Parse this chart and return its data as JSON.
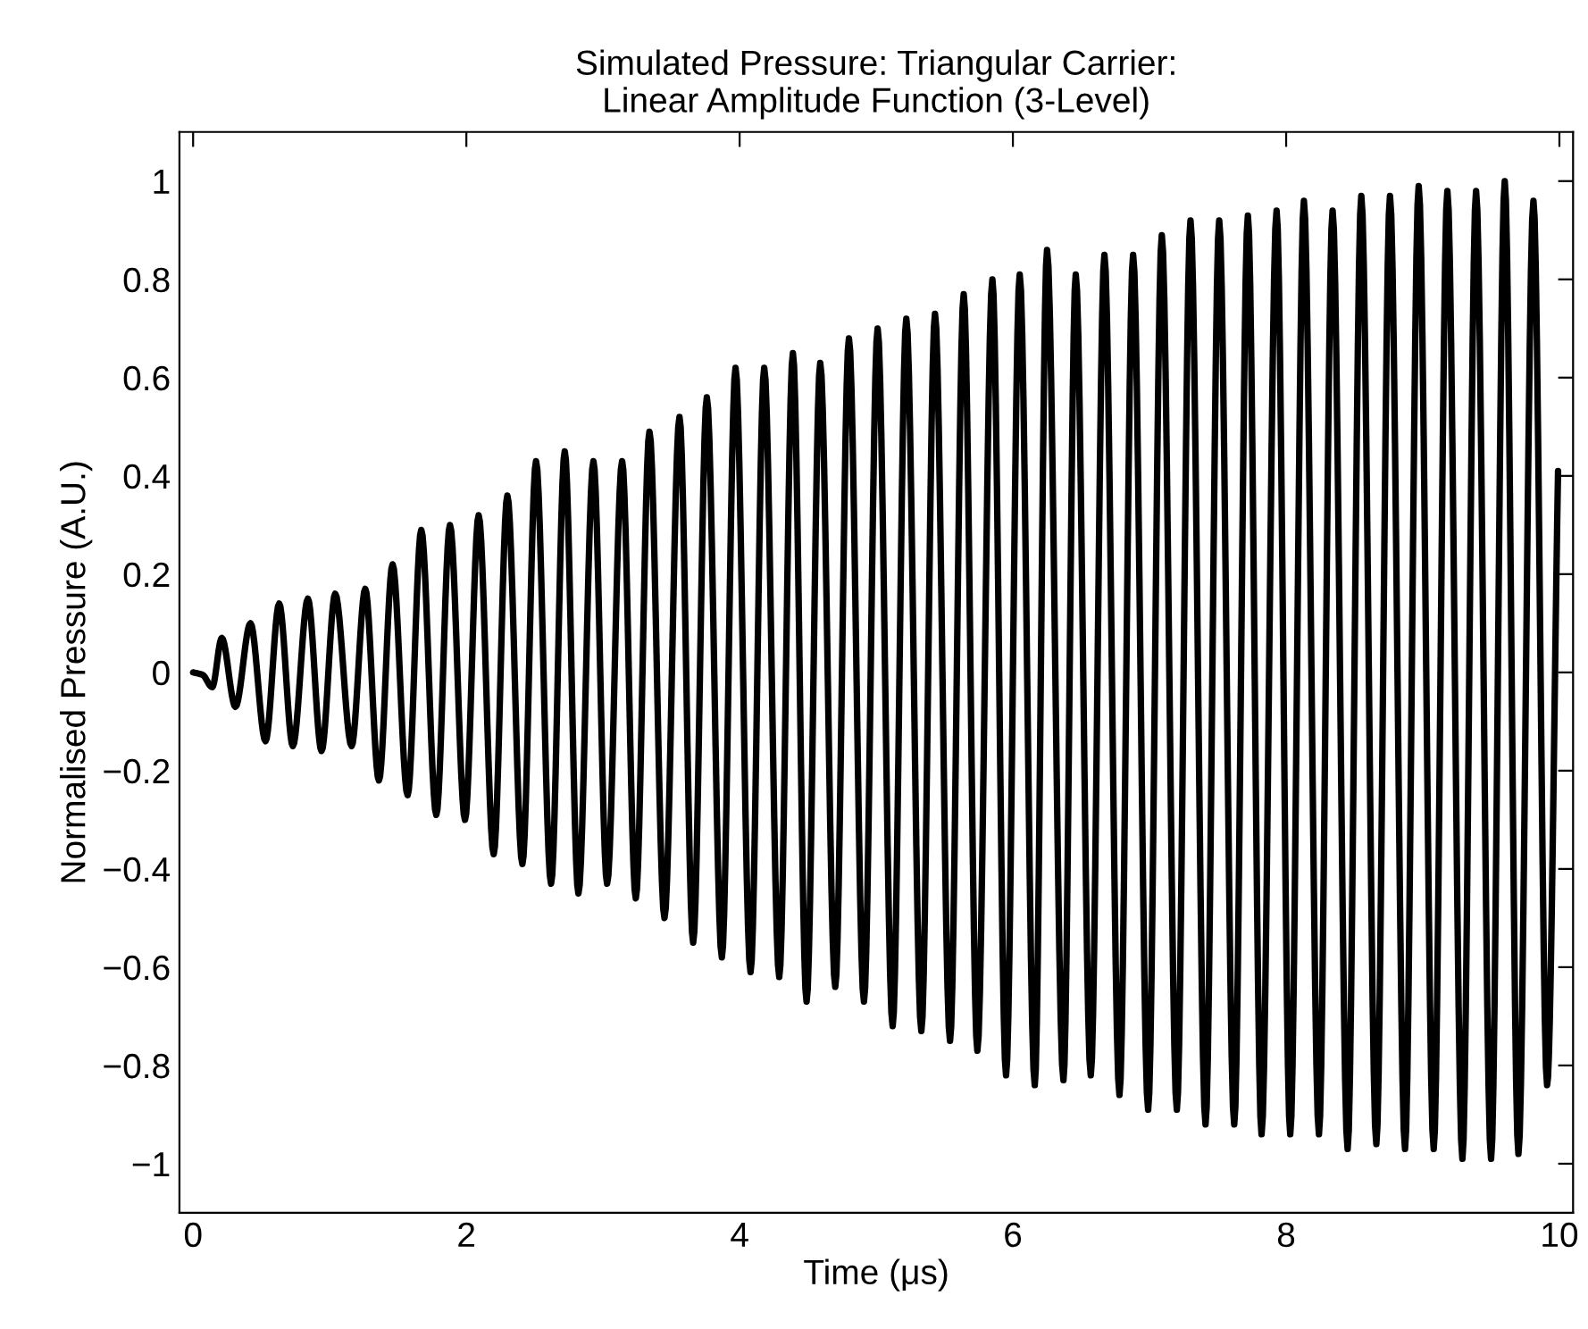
{
  "chart_data": {
    "type": "line",
    "title": "Simulated Pressure: Triangular Carrier:\nLinear Amplitude Function (3-Level)",
    "xlabel": "Time (μs)",
    "ylabel": "Normalised Pressure (A.U.)",
    "xlim": [
      -0.1,
      10.1
    ],
    "ylim": [
      -1.1,
      1.1
    ],
    "xticks": [
      0,
      2,
      4,
      6,
      8,
      10
    ],
    "yticks": [
      -1,
      -0.8,
      -0.6,
      -0.4,
      -0.2,
      0,
      0.2,
      0.4,
      0.6,
      0.8,
      1
    ],
    "grid": false,
    "marker": "none",
    "line_style": "solid",
    "series": [
      {
        "color": "#000000",
        "x": [
          0,
          0.07,
          0.14,
          0.21,
          0.31,
          0.42,
          0.53,
          0.63,
          0.73,
          0.84,
          0.94,
          1.04,
          1.16,
          1.26,
          1.36,
          1.46,
          1.57,
          1.67,
          1.78,
          1.88,
          1.99,
          2.09,
          2.2,
          2.3,
          2.41,
          2.51,
          2.62,
          2.72,
          2.82,
          2.93,
          3.03,
          3.14,
          3.24,
          3.34,
          3.45,
          3.56,
          3.66,
          3.76,
          3.87,
          3.97,
          4.08,
          4.18,
          4.29,
          4.39,
          4.49,
          4.59,
          4.7,
          4.8,
          4.91,
          5.01,
          5.12,
          5.22,
          5.33,
          5.43,
          5.54,
          5.64,
          5.74,
          5.85,
          5.95,
          6.05,
          6.16,
          6.25,
          6.37,
          6.46,
          6.57,
          6.67,
          6.78,
          6.88,
          6.99,
          7.09,
          7.2,
          7.3,
          7.41,
          7.51,
          7.62,
          7.72,
          7.82,
          7.93,
          8.03,
          8.13,
          8.24,
          8.34,
          8.45,
          8.55,
          8.66,
          8.76,
          8.87,
          8.97,
          9.08,
          9.18,
          9.29,
          9.39,
          9.5,
          9.6,
          9.7,
          9.81,
          9.91,
          9.99
        ],
        "values": [
          0,
          -0.005,
          -0.03,
          0.07,
          -0.07,
          0.1,
          -0.14,
          0.14,
          -0.15,
          0.15,
          -0.16,
          0.16,
          -0.15,
          0.17,
          -0.22,
          0.22,
          -0.25,
          0.29,
          -0.29,
          0.3,
          -0.3,
          0.32,
          -0.37,
          0.36,
          -0.39,
          0.43,
          -0.43,
          0.45,
          -0.45,
          0.43,
          -0.43,
          0.43,
          -0.46,
          0.49,
          -0.5,
          0.52,
          -0.55,
          0.56,
          -0.58,
          0.62,
          -0.61,
          0.62,
          -0.62,
          0.65,
          -0.67,
          0.63,
          -0.64,
          0.68,
          -0.67,
          0.7,
          -0.72,
          0.72,
          -0.73,
          0.73,
          -0.75,
          0.77,
          -0.77,
          0.8,
          -0.82,
          0.81,
          -0.84,
          0.86,
          -0.83,
          0.81,
          -0.82,
          0.85,
          -0.86,
          0.85,
          -0.89,
          0.89,
          -0.89,
          0.92,
          -0.92,
          0.92,
          -0.92,
          0.93,
          -0.94,
          0.94,
          -0.94,
          0.96,
          -0.94,
          0.94,
          -0.97,
          0.97,
          -0.96,
          0.97,
          -0.97,
          0.99,
          -0.97,
          0.98,
          -0.99,
          0.98,
          -0.99,
          1.0,
          -0.98,
          0.96,
          -0.84,
          0.41
        ]
      }
    ]
  }
}
